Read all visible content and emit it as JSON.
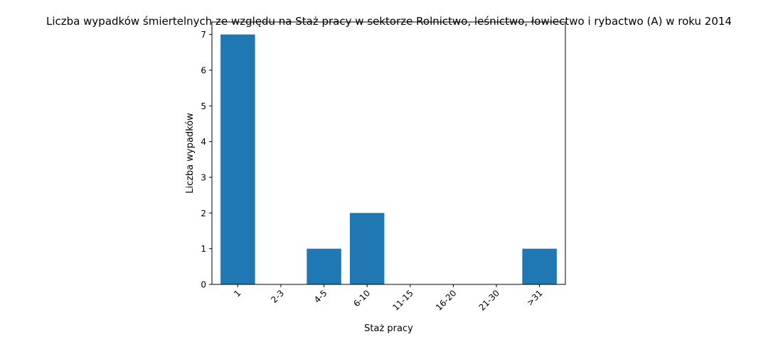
{
  "chart_data": {
    "type": "bar",
    "title": "Liczba wypadków śmiertelnych ze względu na Staż pracy w sektorze Rolnictwo, leśnictwo, łowiectwo i rybactwo (A) w roku 2014",
    "xlabel": "Staż pracy",
    "ylabel": "Liczba wypadków",
    "categories": [
      "1",
      "2-3",
      "4-5",
      "6-10",
      "11-15",
      "16-20",
      "21-30",
      ">31"
    ],
    "values": [
      7,
      0,
      1,
      2,
      0,
      0,
      0,
      1
    ],
    "ylim": [
      0,
      7.35
    ],
    "yticks": [
      0,
      1,
      2,
      3,
      4,
      5,
      6,
      7
    ],
    "bar_color": "#1f77b4",
    "grid": false,
    "x_tick_rotation_deg": 45
  }
}
